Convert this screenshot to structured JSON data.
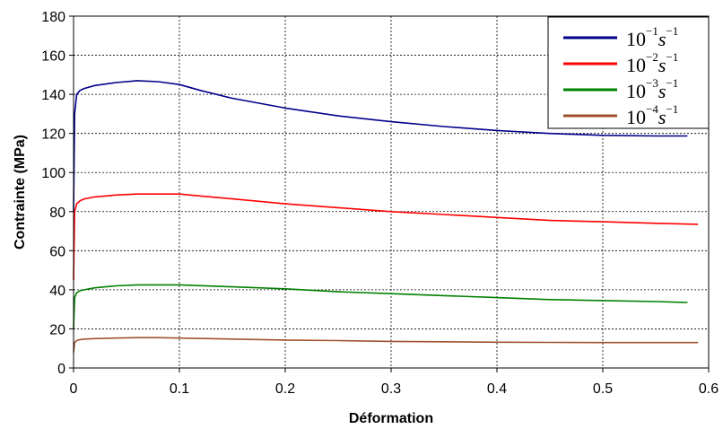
{
  "chart_data": {
    "type": "line",
    "title": "",
    "xlabel": "Déformation",
    "ylabel": "Contrainte (MPa)",
    "xlim": [
      0,
      0.6
    ],
    "ylim": [
      0,
      180
    ],
    "x_ticks": [
      "0",
      "0.1",
      "0.2",
      "0.3",
      "0.4",
      "0.5",
      "0.6"
    ],
    "y_ticks": [
      "0",
      "20",
      "40",
      "60",
      "80",
      "100",
      "120",
      "140",
      "160",
      "180"
    ],
    "grid": true,
    "legend_position": "top-right",
    "series": [
      {
        "name": "10^-1 s^-1",
        "legend": {
          "base": "10",
          "exp": "−1",
          "unit": "s",
          "unit_exp": "−1"
        },
        "color": "#00008B",
        "x": [
          0,
          0.001,
          0.003,
          0.006,
          0.01,
          0.02,
          0.04,
          0.06,
          0.08,
          0.1,
          0.12,
          0.15,
          0.2,
          0.25,
          0.3,
          0.35,
          0.4,
          0.45,
          0.5,
          0.55,
          0.58
        ],
        "y": [
          80,
          130,
          140,
          142,
          143,
          144.5,
          146,
          147,
          146.5,
          145,
          142,
          138,
          133,
          129,
          126,
          123.5,
          121.5,
          120,
          119,
          118.7,
          118.7
        ]
      },
      {
        "name": "10^-2 s^-1",
        "legend": {
          "base": "10",
          "exp": "−2",
          "unit": "s",
          "unit_exp": "−1"
        },
        "color": "#FF0000",
        "x": [
          0,
          0.001,
          0.003,
          0.006,
          0.01,
          0.02,
          0.04,
          0.06,
          0.08,
          0.1,
          0.12,
          0.15,
          0.2,
          0.25,
          0.3,
          0.35,
          0.4,
          0.45,
          0.5,
          0.55,
          0.59
        ],
        "y": [
          45,
          80,
          84,
          85.5,
          86.5,
          87.5,
          88.5,
          89,
          89,
          89,
          88,
          86.5,
          84,
          82,
          80,
          78.5,
          77,
          75.5,
          74.8,
          74,
          73.5
        ]
      },
      {
        "name": "10^-3 s^-1",
        "legend": {
          "base": "10",
          "exp": "−3",
          "unit": "s",
          "unit_exp": "−1"
        },
        "color": "#008000",
        "x": [
          0,
          0.001,
          0.003,
          0.006,
          0.01,
          0.02,
          0.04,
          0.06,
          0.08,
          0.1,
          0.15,
          0.2,
          0.25,
          0.3,
          0.35,
          0.4,
          0.45,
          0.5,
          0.55,
          0.58
        ],
        "y": [
          20,
          36,
          38.5,
          39.5,
          40,
          41,
          42,
          42.5,
          42.5,
          42.5,
          41.5,
          40.5,
          39,
          38,
          37,
          36,
          35,
          34.5,
          34,
          33.5
        ]
      },
      {
        "name": "10^-4 s^-1",
        "legend": {
          "base": "10",
          "exp": "−4",
          "unit": "s",
          "unit_exp": "−1"
        },
        "color": "#A0522D",
        "x": [
          0,
          0.001,
          0.003,
          0.006,
          0.01,
          0.02,
          0.04,
          0.06,
          0.08,
          0.1,
          0.15,
          0.2,
          0.25,
          0.3,
          0.35,
          0.4,
          0.45,
          0.5,
          0.55,
          0.59
        ],
        "y": [
          8,
          13,
          14,
          14.5,
          14.8,
          15,
          15.3,
          15.5,
          15.5,
          15.3,
          14.8,
          14.3,
          14,
          13.6,
          13.4,
          13.2,
          13.1,
          13,
          13,
          13
        ]
      }
    ]
  }
}
